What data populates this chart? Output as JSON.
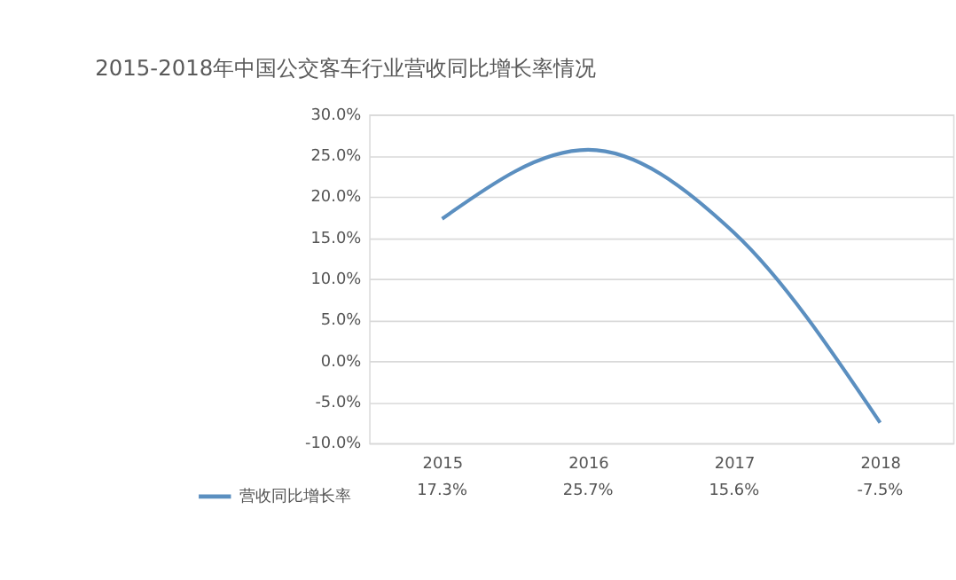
{
  "chart_data": {
    "type": "line",
    "title": "2015-2018年中国公交客车行业营收同比增长率情况",
    "categories": [
      "2015",
      "2016",
      "2017",
      "2018"
    ],
    "series": [
      {
        "name": "营收同比增长率",
        "color": "#5b8fc0",
        "values": [
          17.3,
          25.7,
          15.6,
          -7.5
        ],
        "value_labels": [
          "17.3%",
          "25.7%",
          "15.6%",
          "-7.5%"
        ]
      }
    ],
    "ylim": [
      -10,
      30
    ],
    "yticks": [
      {
        "value": -10,
        "label": "-10.0%"
      },
      {
        "value": -5,
        "label": "-5.0%"
      },
      {
        "value": 0,
        "label": "0.0%"
      },
      {
        "value": 5,
        "label": "5.0%"
      },
      {
        "value": 10,
        "label": "10.0%"
      },
      {
        "value": 15,
        "label": "15.0%"
      },
      {
        "value": 20,
        "label": "20.0%"
      },
      {
        "value": 25,
        "label": "25.0%"
      },
      {
        "value": 30,
        "label": "30.0%"
      }
    ],
    "grid": "y",
    "legend": "bottom left",
    "marker": "none",
    "line_style": "solid"
  }
}
